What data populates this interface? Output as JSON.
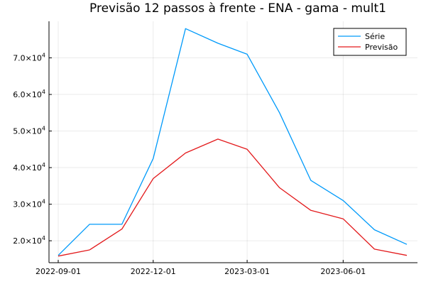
{
  "chart_data": {
    "type": "line",
    "title": "Previsão 12 passos à frente - ENA - gama - mult1",
    "xlabel": "",
    "ylabel": "",
    "x": [
      "2022-09-01",
      "2022-10-01",
      "2022-11-01",
      "2022-12-01",
      "2023-01-01",
      "2023-02-01",
      "2023-03-01",
      "2023-04-01",
      "2023-05-01",
      "2023-06-01",
      "2023-07-01",
      "2023-08-01"
    ],
    "x_ticks": [
      "2022-09-01",
      "2022-12-01",
      "2023-03-01",
      "2023-06-01"
    ],
    "ylim": [
      14000,
      80000
    ],
    "y_ticks": [
      20000,
      30000,
      40000,
      50000,
      60000,
      70000
    ],
    "y_tick_labels": [
      {
        "mantissa": "2.0×10",
        "exponent": "4"
      },
      {
        "mantissa": "3.0×10",
        "exponent": "4"
      },
      {
        "mantissa": "4.0×10",
        "exponent": "4"
      },
      {
        "mantissa": "5.0×10",
        "exponent": "4"
      },
      {
        "mantissa": "6.0×10",
        "exponent": "4"
      },
      {
        "mantissa": "7.0×10",
        "exponent": "4"
      }
    ],
    "grid": true,
    "legend_position": "top-right",
    "series": [
      {
        "name": "Série",
        "color": "#009AFA",
        "values": [
          16000,
          24500,
          24500,
          42500,
          78000,
          74000,
          71000,
          55000,
          36500,
          31000,
          23000,
          19000
        ]
      },
      {
        "name": "Previsão",
        "color": "#E31A1C",
        "values": [
          15800,
          17500,
          23200,
          37000,
          44000,
          47800,
          45000,
          34500,
          28300,
          26000,
          17700,
          16000
        ]
      }
    ]
  }
}
